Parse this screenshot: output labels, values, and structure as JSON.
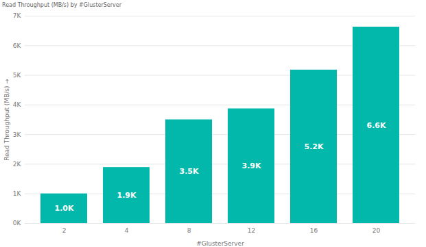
{
  "chart_data": {
    "type": "bar",
    "title": "Read Throughput (MB/s) by #GlusterServer",
    "x_label": "#GlusterServer",
    "y_label": "Read Throughput (MB/s)",
    "categories": [
      "2",
      "4",
      "8",
      "12",
      "16",
      "20"
    ],
    "values": [
      1000,
      1890,
      3500,
      3870,
      5180,
      6630
    ],
    "value_labels": [
      "1.0K",
      "1.9K",
      "3.5K",
      "3.9K",
      "5.2K",
      "6.6K"
    ],
    "color": "#01b8aa",
    "ylim": [
      0,
      7000
    ],
    "yticks": [
      {
        "value": 0,
        "label": "0K"
      },
      {
        "value": 1000,
        "label": "1K"
      },
      {
        "value": 2000,
        "label": "2K"
      },
      {
        "value": 3000,
        "label": "3K"
      },
      {
        "value": 4000,
        "label": "4K"
      },
      {
        "value": 5000,
        "label": "5K"
      },
      {
        "value": 6000,
        "label": "6K"
      },
      {
        "value": 7000,
        "label": "7K"
      }
    ],
    "grid": true,
    "data_labels": true
  }
}
